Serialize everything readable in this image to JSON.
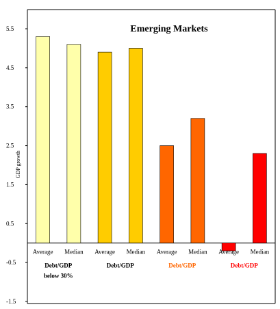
{
  "chart_data": {
    "type": "bar",
    "title": "Emerging Markets",
    "ylabel": "GDP growth",
    "xlabel": "",
    "ylim": [
      -1.5,
      6.0
    ],
    "yticks": [
      5.5,
      4.5,
      3.5,
      2.5,
      1.5,
      0.5,
      -0.5,
      -1.5
    ],
    "grid": false,
    "legend": "none",
    "categories": [
      "Average",
      "Median",
      "Average",
      "Median",
      "Average",
      "Median",
      "Average",
      "Median"
    ],
    "values": [
      5.3,
      5.1,
      4.9,
      5.0,
      2.5,
      3.2,
      -0.2,
      2.3
    ],
    "bar_colors": [
      "#ffffaa",
      "#ffffaa",
      "#ffcc00",
      "#ffcc00",
      "#ff6600",
      "#ff6600",
      "#ff0000",
      "#ff0000"
    ],
    "groups": [
      {
        "lines": [
          "Debt/GDP",
          "below 30%"
        ],
        "color": "#000000"
      },
      {
        "lines": [
          "Debt/GDP"
        ],
        "color": "#000000"
      },
      {
        "lines": [
          "Debt/GDP"
        ],
        "color": "#ff6600"
      },
      {
        "lines": [
          "Debt/GDP"
        ],
        "color": "#ff0000"
      }
    ]
  }
}
